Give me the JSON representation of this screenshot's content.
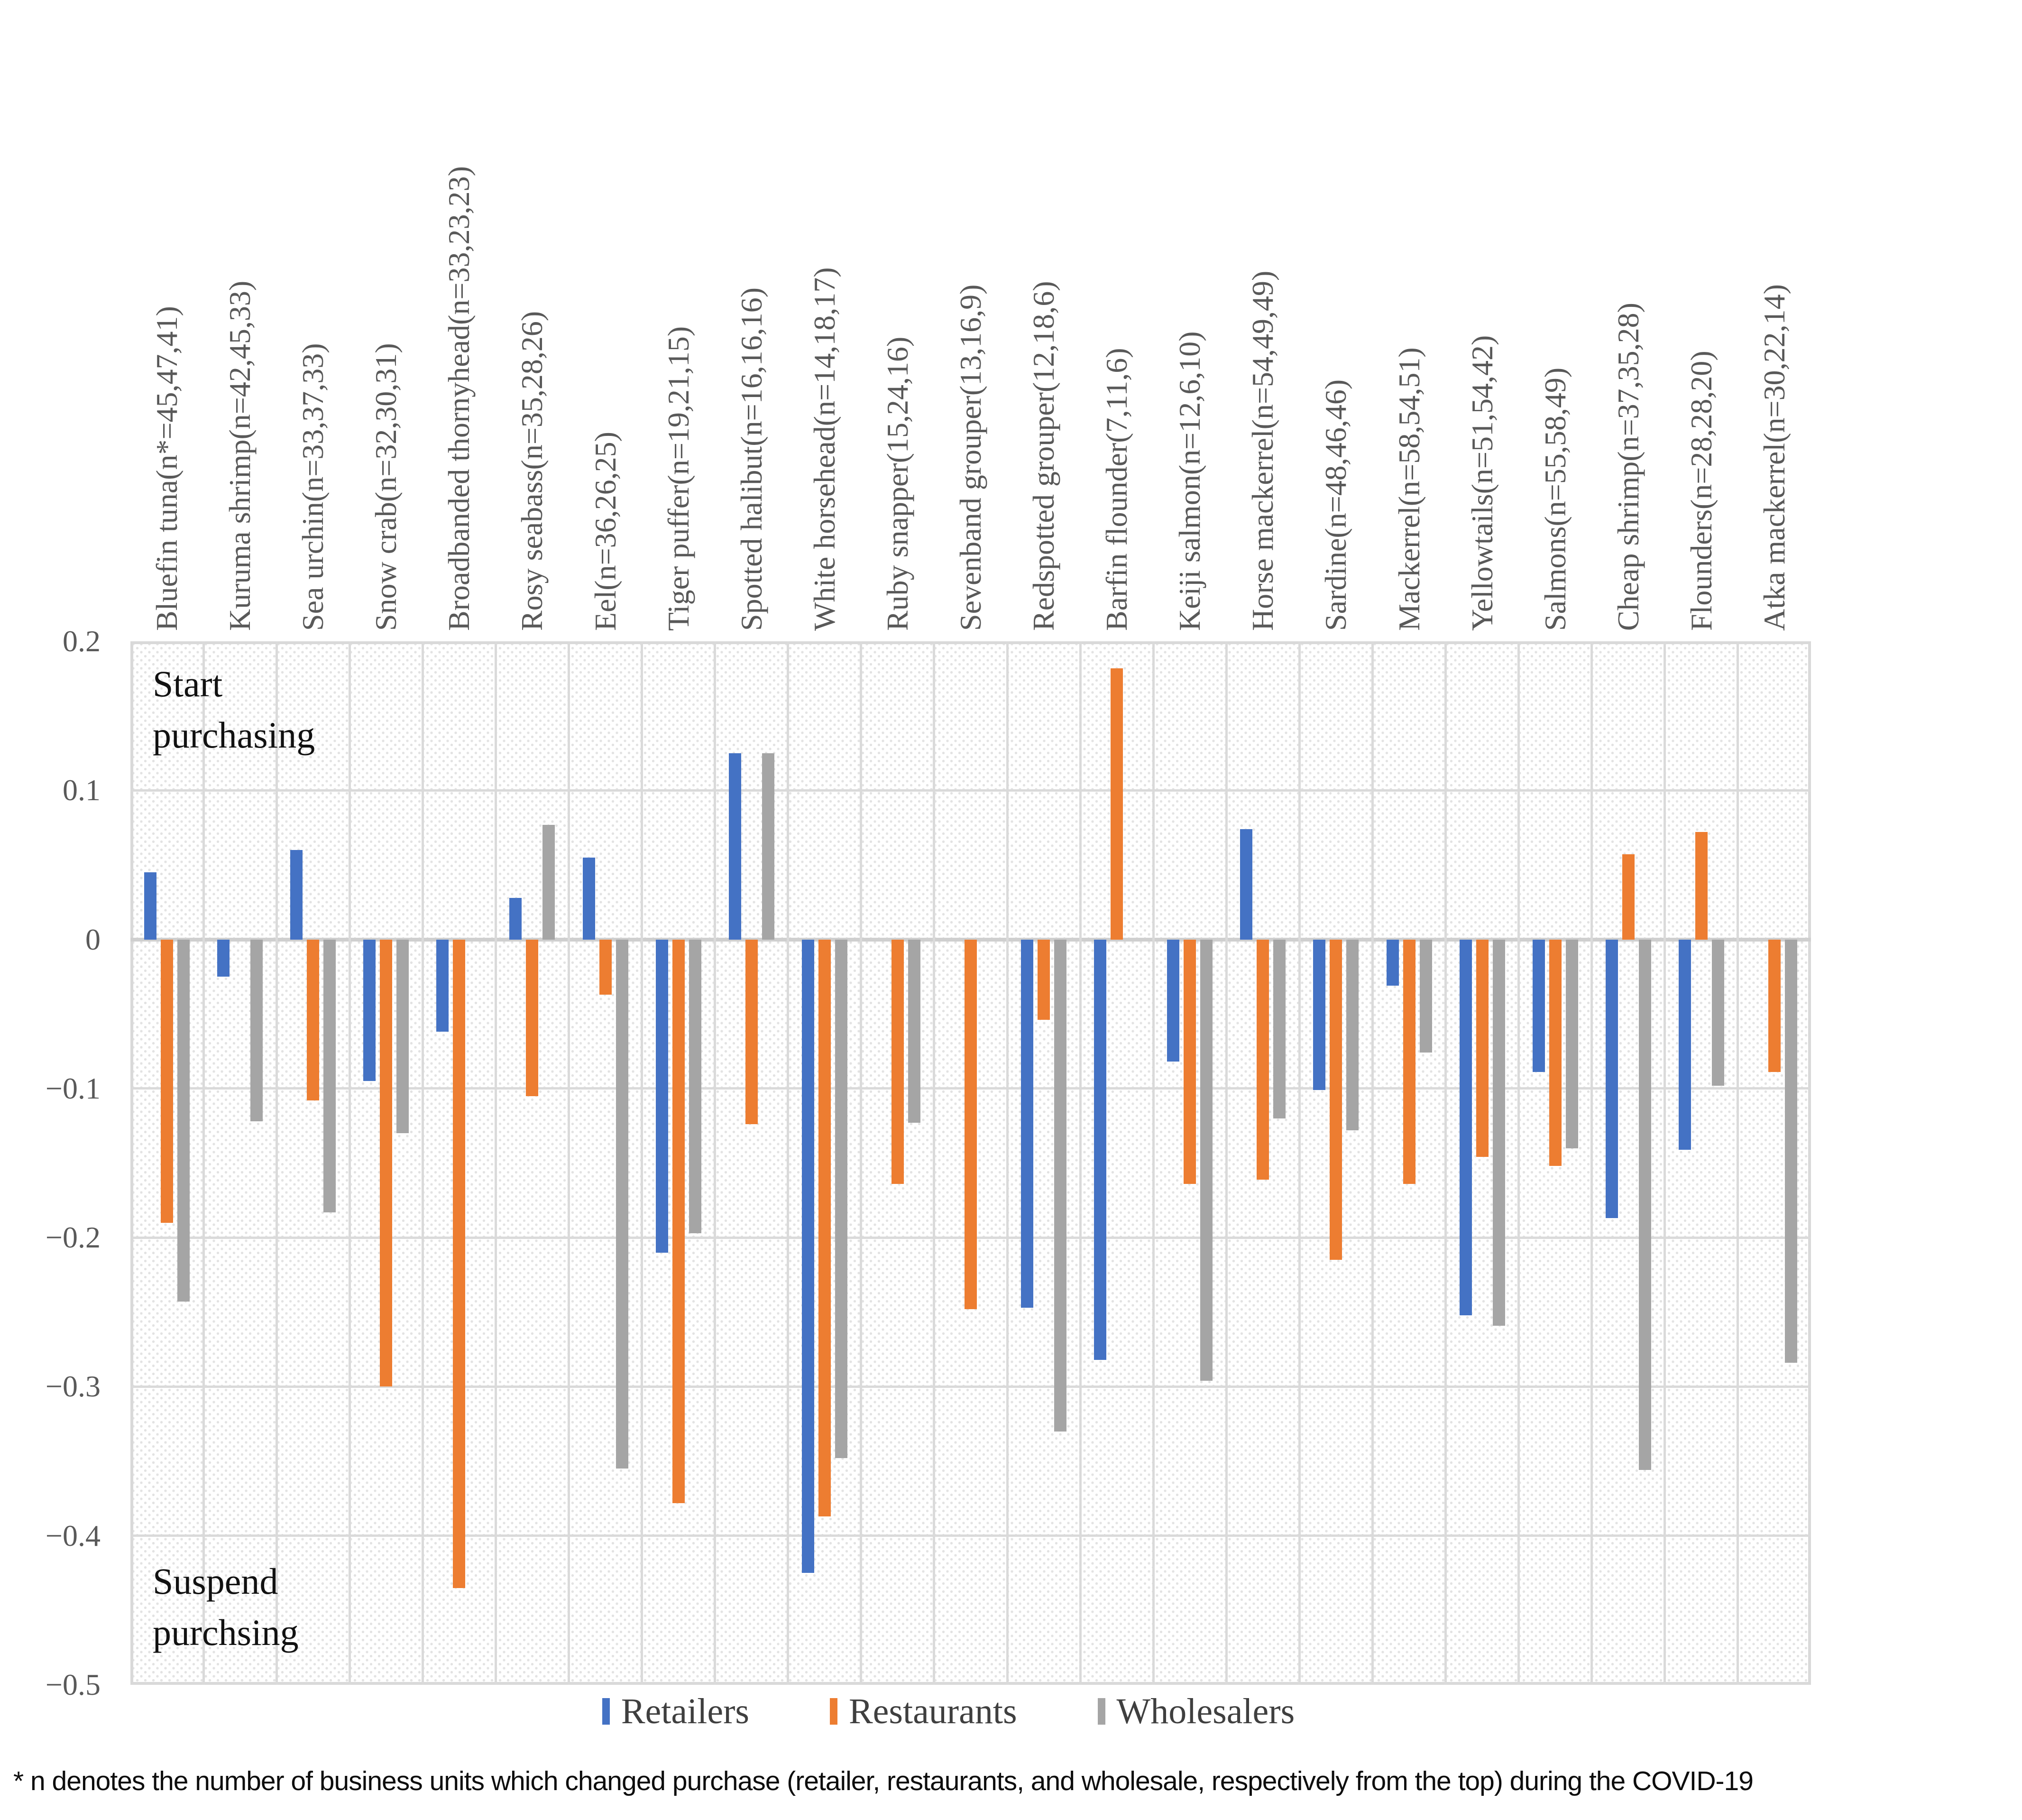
{
  "chart_data": {
    "type": "bar",
    "title": "",
    "xlabel": "",
    "ylabel": "",
    "ylim": [
      -0.5,
      0.2
    ],
    "grid": true,
    "legend_position": "bottom",
    "yticks": [
      "0.2",
      "0.1",
      "0",
      "−0.1",
      "−0.2",
      "−0.3",
      "−0.4",
      "−0.5"
    ],
    "categories": [
      "Bluefin tuna(n*=45,47,41)",
      "Kuruma shrimp(n=42,45,33)",
      "Sea urchin(n=33,37,33)",
      "Snow crab(n=32,30,31)",
      "Broadbanded thornyhead(n=33,23,23)",
      "Rosy seabass(n=35,28,26)",
      "Eel(n=36,26,25)",
      "Tiger puffer(n=19,21,15)",
      "Spotted halibut(n=16,16,16)",
      "White horsehead(n=14,18,17)",
      "Ruby snapper(15,24,16)",
      "Sevenband grouper(13,16,9)",
      "Redspotted grouper(12,18,6)",
      "Barfin flounder(7,11,6)",
      "Keiji salmon(n=12,6,10)",
      "Horse mackerrel(n=54,49,49)",
      "Sardine(n=48,46,46)",
      "Mackerrel(n=58,54,51)",
      "Yellowtails(n=51,54,42)",
      "Salmons(n=55,58,49)",
      "Cheap shrimp(n=37,35,28)",
      "Flounders(n=28,28,20)",
      "Atka mackerrel(n=30,22,14)"
    ],
    "series": [
      {
        "name": "Retailers",
        "color": "#4472C4",
        "values": [
          0.045,
          -0.025,
          0.06,
          -0.095,
          -0.062,
          0.028,
          0.055,
          -0.21,
          0.125,
          -0.425,
          0,
          0,
          -0.247,
          -0.282,
          -0.082,
          0.074,
          -0.101,
          -0.031,
          -0.252,
          -0.089,
          -0.187,
          -0.141,
          0
        ]
      },
      {
        "name": "Restaurants",
        "color": "#ED7D31",
        "values": [
          -0.19,
          0,
          -0.108,
          -0.3,
          -0.435,
          -0.105,
          -0.037,
          -0.378,
          -0.124,
          -0.387,
          -0.164,
          -0.248,
          -0.054,
          0.182,
          -0.164,
          -0.161,
          -0.215,
          -0.164,
          -0.146,
          -0.152,
          0.057,
          0.072,
          -0.089
        ]
      },
      {
        "name": "Wholesalers",
        "color": "#A5A5A5",
        "values": [
          -0.243,
          -0.122,
          -0.183,
          -0.13,
          0,
          0.077,
          -0.355,
          -0.197,
          0.125,
          -0.348,
          -0.123,
          0,
          -0.33,
          0,
          -0.296,
          -0.12,
          -0.128,
          -0.076,
          -0.259,
          -0.14,
          -0.356,
          -0.098,
          -0.284
        ]
      }
    ],
    "annotations": {
      "top": "Start\npurchasing",
      "bottom": "Suspend\npurchsing"
    }
  },
  "footnote": "* n denotes the number of business units which changed purchase (retailer, restaurants, and wholesale, respectively from the top) during the COVID-19"
}
